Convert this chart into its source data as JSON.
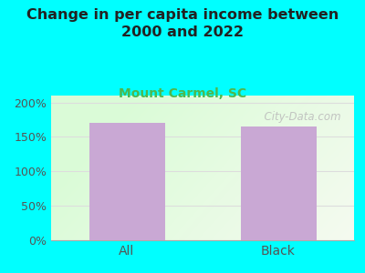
{
  "categories": [
    "All",
    "Black"
  ],
  "values": [
    170,
    165
  ],
  "bar_color": "#C9A8D4",
  "title": "Change in per capita income between\n2000 and 2022",
  "subtitle": "Mount Carmel, SC",
  "title_fontsize": 11.5,
  "subtitle_fontsize": 10,
  "title_color": "#222222",
  "subtitle_color": "#4db84d",
  "background_color": "#00FFFF",
  "ylim": [
    0,
    210
  ],
  "yticks": [
    0,
    50,
    100,
    150,
    200
  ],
  "yticklabels": [
    "0%",
    "50%",
    "100%",
    "150%",
    "200%"
  ],
  "tick_color": "#555555",
  "watermark": "  City-Data.com",
  "watermark_color": "#bbbbbb",
  "grid_color": "#dddddd"
}
